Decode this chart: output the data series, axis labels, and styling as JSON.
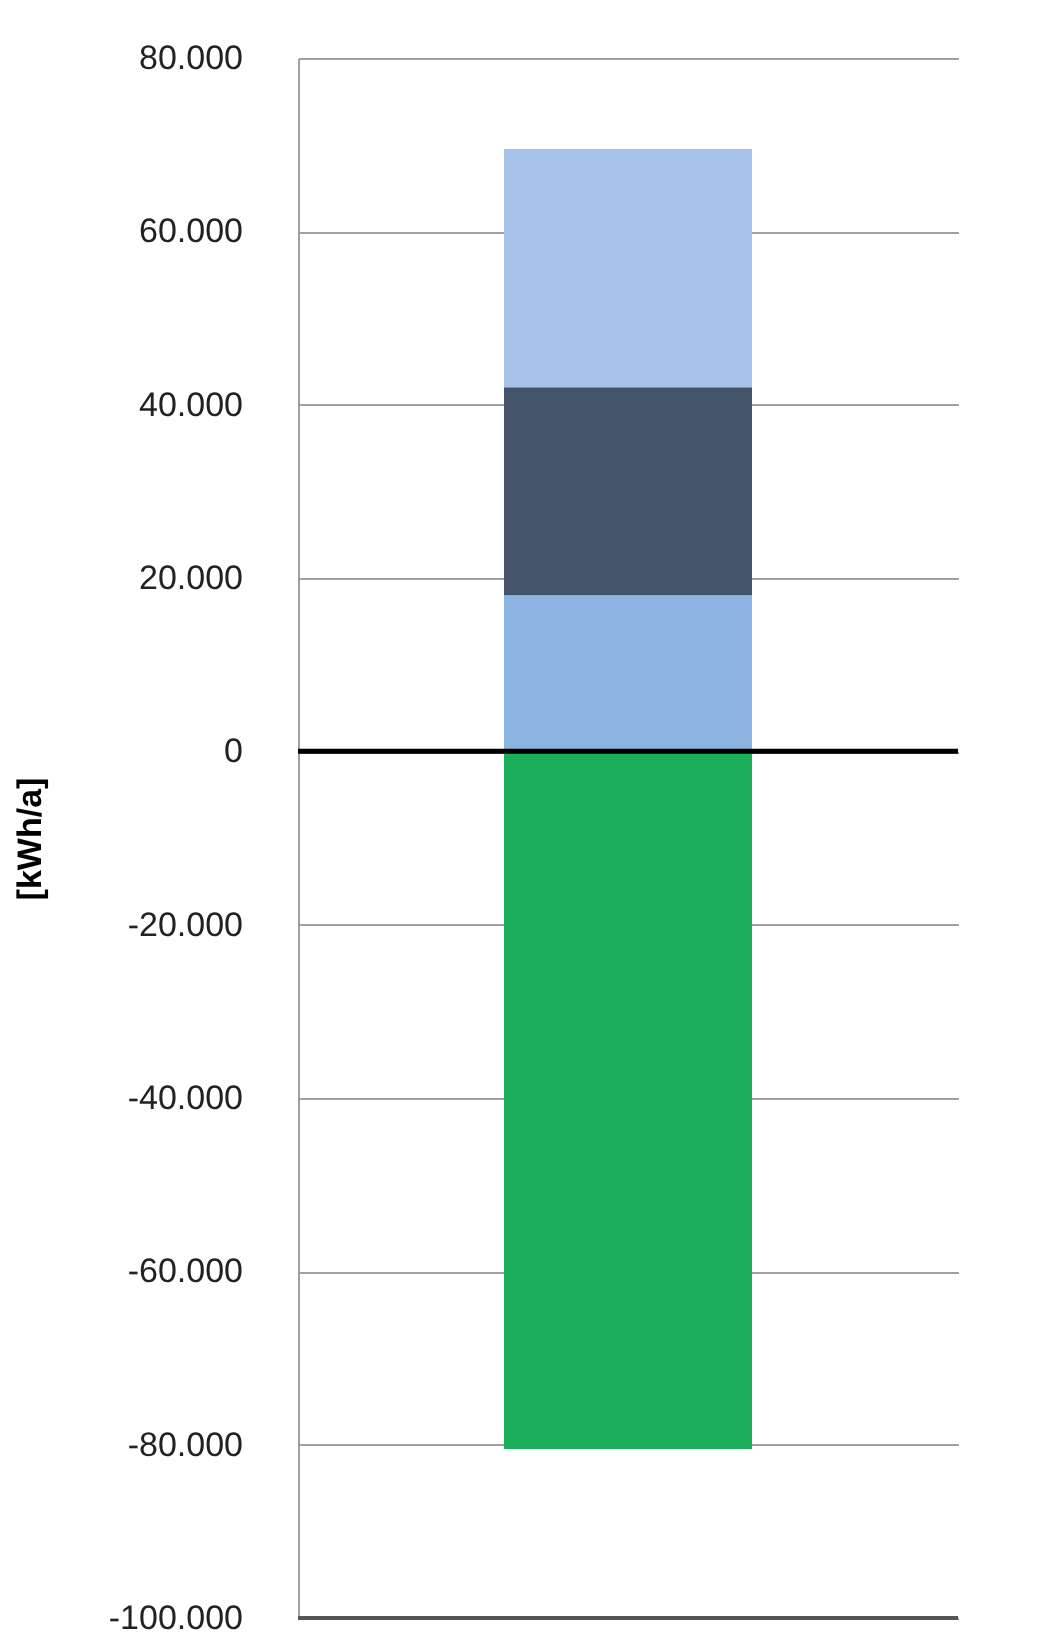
{
  "chart_data": {
    "type": "bar",
    "stacked": true,
    "ylabel": "[kWh/a]",
    "categories": [
      null
    ],
    "series": [
      {
        "color": "#8db3e2",
        "values": [
          18000
        ]
      },
      {
        "color": "#44546a",
        "values": [
          24000
        ]
      },
      {
        "color": "#a7c3ea",
        "values": [
          27500
        ]
      },
      {
        "color": "#1aae5a",
        "values": [
          -80500
        ]
      }
    ],
    "ylim": [
      -100000,
      80000
    ],
    "yticks": [
      {
        "value": -100000,
        "label": "-100.000"
      },
      {
        "value": -80000,
        "label": "-80.000"
      },
      {
        "value": -60000,
        "label": "-60.000"
      },
      {
        "value": -40000,
        "label": "-40.000"
      },
      {
        "value": -20000,
        "label": "-20.000"
      },
      0,
      {
        "value": 20000,
        "label": "20.000"
      },
      {
        "value": 40000,
        "label": "40.000"
      },
      {
        "value": 60000,
        "label": "60.000"
      },
      {
        "value": 80000,
        "label": "80.000"
      }
    ],
    "ref_lines": [
      {
        "axis": "y",
        "value": 0,
        "color": "#000000"
      }
    ],
    "grid": "y",
    "tick_labels": "y",
    "legend": false
  }
}
